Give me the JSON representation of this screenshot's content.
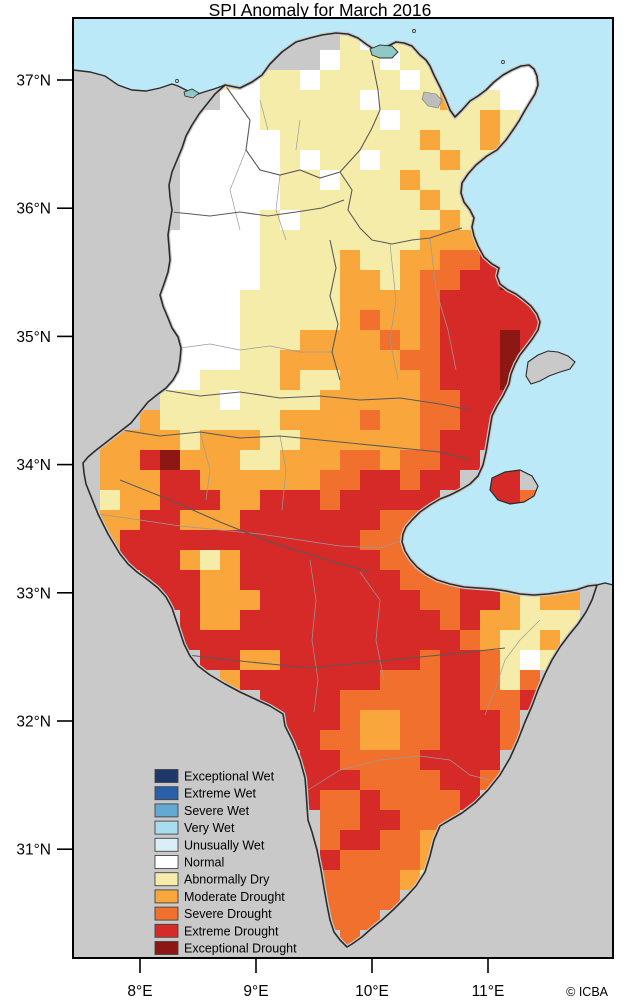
{
  "title": "SPI Anomaly for March 2016",
  "attribution": "© ICBA",
  "axes": {
    "lat_labels": [
      "37°N",
      "36°N",
      "35°N",
      "34°N",
      "33°N",
      "32°N",
      "31°N"
    ],
    "lon_labels": [
      "8°E",
      "9°E",
      "10°E",
      "11°E"
    ]
  },
  "legend": {
    "items": [
      {
        "label": "Exceptional Wet",
        "color": "#1f3668"
      },
      {
        "label": "Extreme Wet",
        "color": "#2b5fa8"
      },
      {
        "label": "Severe Wet",
        "color": "#64a8d4"
      },
      {
        "label": "Very Wet",
        "color": "#a8ddf0"
      },
      {
        "label": "Unusually Wet",
        "color": "#daeef7"
      },
      {
        "label": "Normal",
        "color": "#ffffff"
      },
      {
        "label": "Abnormally Dry",
        "color": "#f6eca9"
      },
      {
        "label": "Moderate Drought",
        "color": "#f9a63d"
      },
      {
        "label": "Severe Drought",
        "color": "#f1702d"
      },
      {
        "label": "Extreme Drought",
        "color": "#d62a28"
      },
      {
        "label": "Exceptional Drought",
        "color": "#8c1713"
      }
    ]
  },
  "map": {
    "colors": {
      "sea": "#bce9f8",
      "outer_land": "#c9c9c9",
      "lake": "#8fc8c4",
      "urban": "#bdbdbd",
      "coastline": "#2b2b2b",
      "fringe": "#c9c9c9",
      "admin_minor": "#9a9a9a",
      "admin_major": "#5a5a5a"
    },
    "palette": {
      "W": "#ffffff",
      "Y": "#f6eca9",
      "M": "#f9a63d",
      "S": "#f1702d",
      "R": "#d62a28",
      "X": "#8c1713"
    },
    "grid": {
      "rows": [
        ".............YWYYW........",
        "............WYYWYYW..WW...",
        ".......YWYYWYYYYWYWYWWW...",
        ".......WWYYYYYWYYYMYYWW...",
        ".....WWWWYYYYYYWYYYYMYW...",
        ".....WWWWWYYYYYYYMYYMY....",
        ".....WWWWWYWYYWYYYMYYY....",
        ".....WWWWWYYWYYYMYYY......",
        ".....WWWWWYYYYYYYMYY......",
        ".....WWWWYWYYYYYYYMY......",
        "....WWWWWYYYYYYYYMMMM.....",
        "....WWWWWYYYYMYYMMSSRX....",
        "....WWWWWYYYYMMYMSSRRX....",
        "....WWWWYYYYYMMMMSRRRRR...",
        "....WWWWYYYYYMSMMSRRRRR...",
        "....WWWWYYYMMMMSMSRRRXR...",
        "....WWWWYYMMMMMMSSRRRXR...",
        "....WWYYYYMYYMMMMSRRRXR...",
        "....YYYWYYYYMMMMMSSRRR....",
        "...MYYYYYYMMMMSMMSSRRR....",
        ".MMMMYMMMYYMMMMMMSRRR.....",
        ".MMRXMMMYYMMMSSMSSRR......",
        ".MMMRRMMMMMMSSRRSRR.RR....",
        ".YMMRRRMMRRRSRRRRR..RRS...",
        ".MMRRMMMRRRRRRRSS.........",
        ".MRRRRRRRRRRRRSSS.........",
        ".MRRRMYMRRRRRRRSSS....RRY.",
        ".MMRRRMMRRRRRRRRSSSRRRYY..",
        "....RRMMMRRRRRRRRSSRRMYMM.",
        ".....RMMRRRRRRRRRRSRMMYYY.",
        ".....RRRRRRRRRRRRRRSMYYMY.",
        "......RRMMRRRRRRRSRRSYWY..",
        ".......MRRRRRRRSSSRRSYS...",
        ".........RRRRSSSSSRRSSR...",
        "..........RRRSMMSSRRRS....",
        "..........RRSSMMSSRRRS....",
        "...........RRSSSSRRRR.....",
        "...........RRRSSSSRRS.....",
        "...........RSSRSSSSR......",
        "............SSRRSSS.......",
        "............SRRSSM........",
        "............RSSSSM........",
        "............SSSSMY........",
        "............SSSS..........",
        "............SSS...........",
        ".............S............"
      ]
    }
  }
}
